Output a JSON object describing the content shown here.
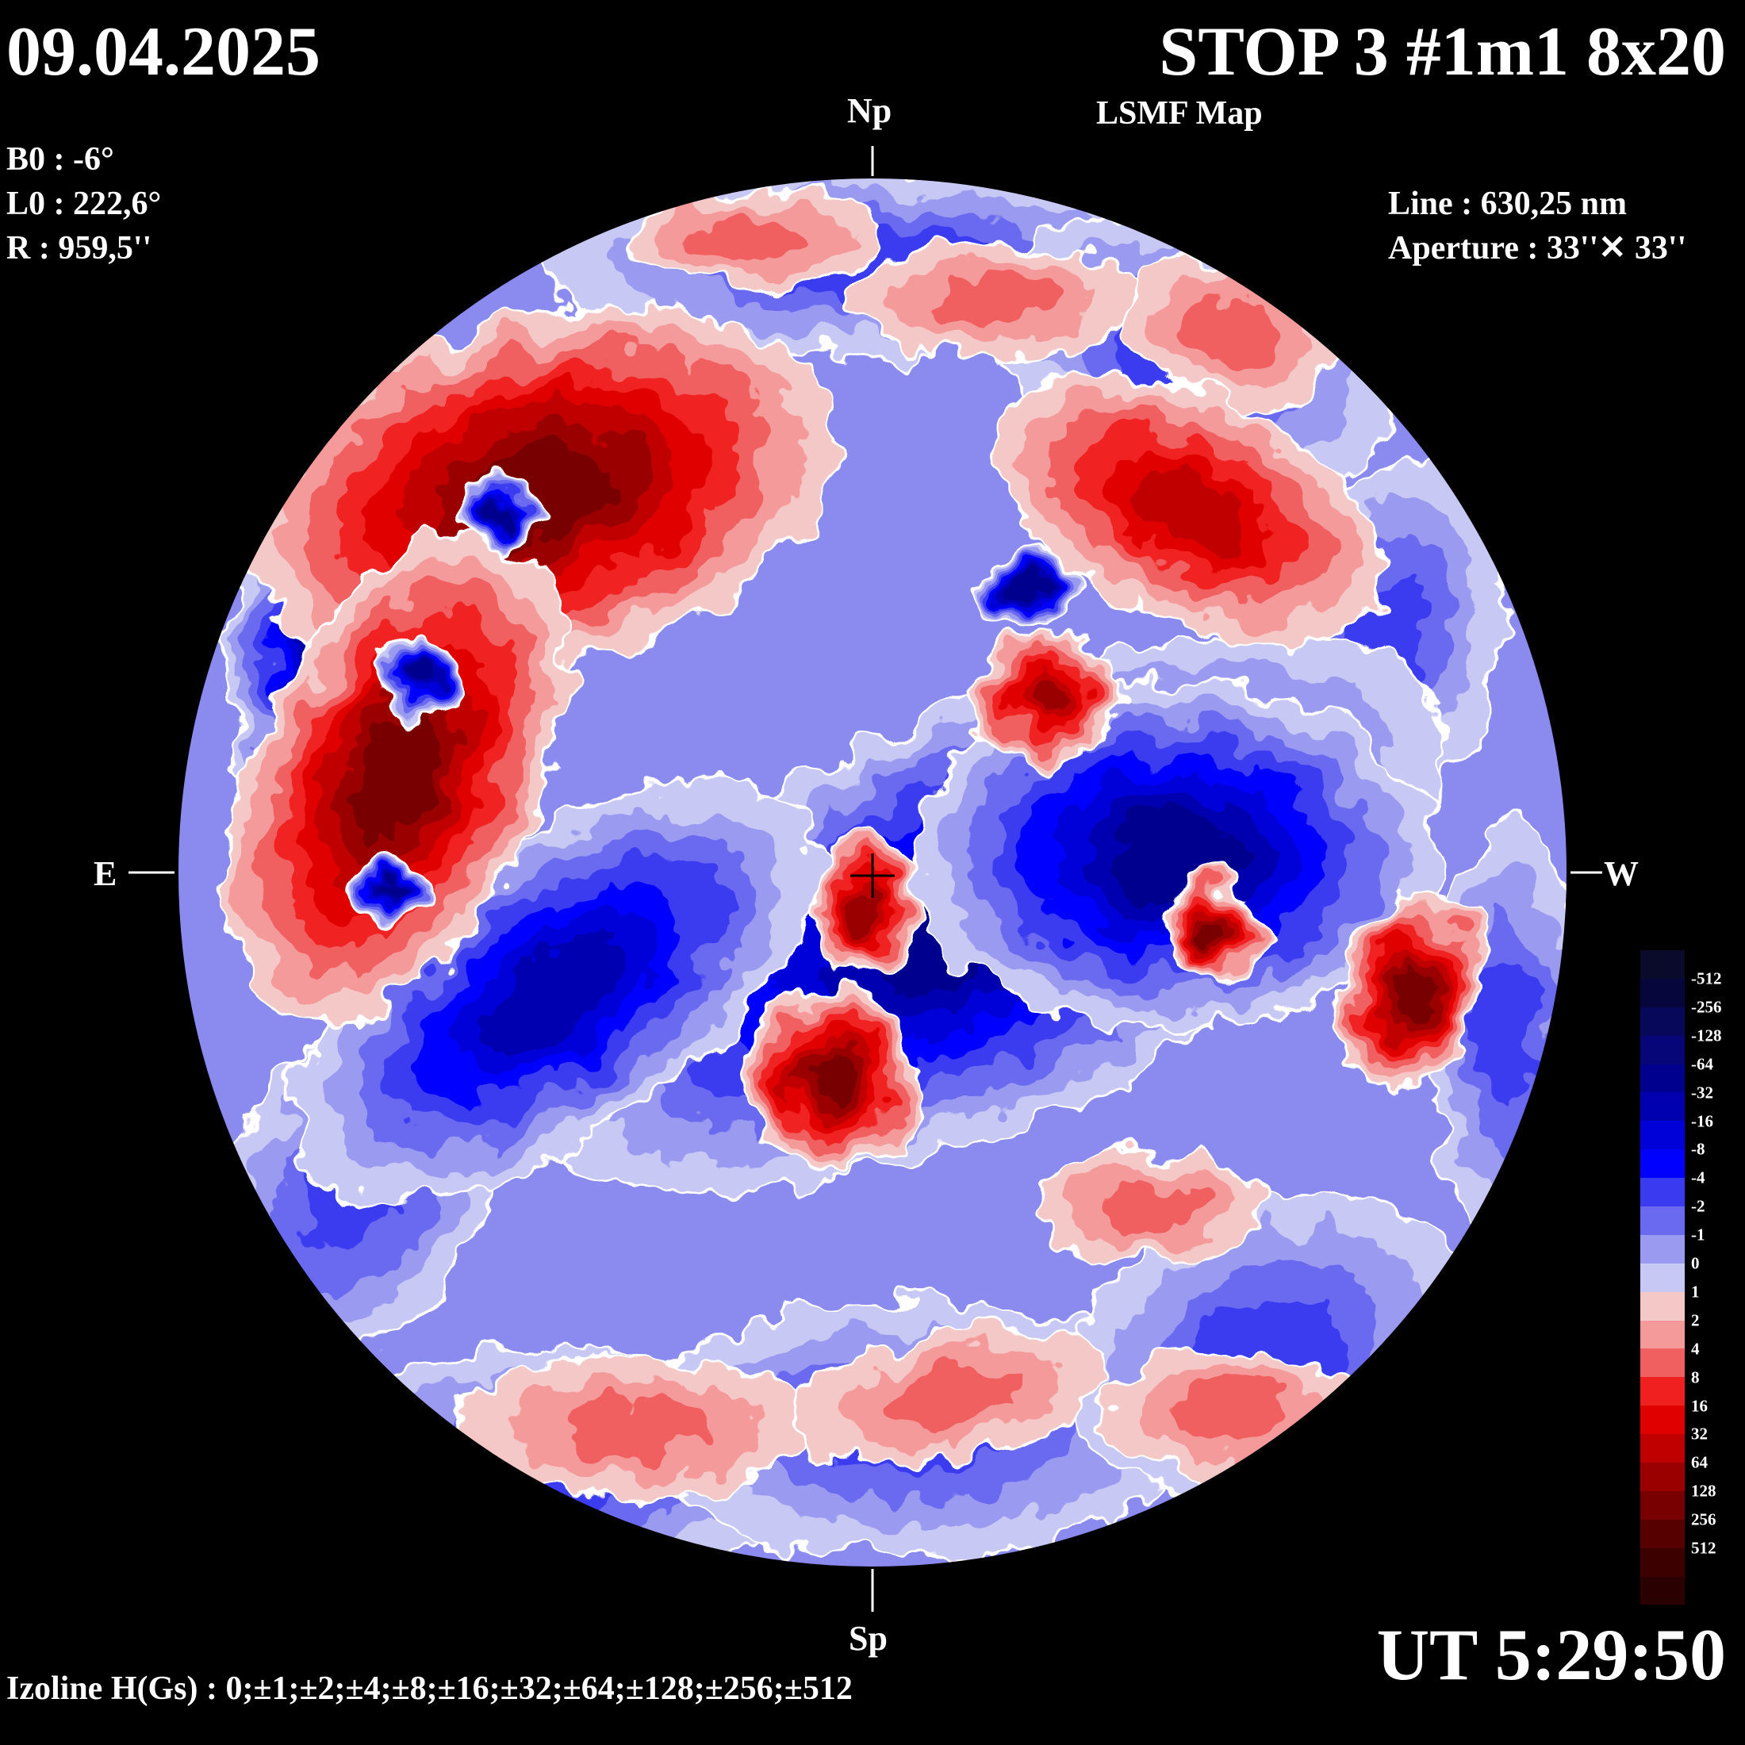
{
  "header": {
    "date": "09.04.2025",
    "title": "STOP 3 #1m1 8x20",
    "subtitle": "LSMF  Map"
  },
  "ephemeris": {
    "b0": "B0 : -6°",
    "l0": "L0 : 222,6°",
    "r": "R  : 959,5''"
  },
  "instrument": {
    "line": "Line :  630,25 nm",
    "aperture": "Aperture : 33''✕ 33''"
  },
  "directions": {
    "north": "Np",
    "south": "Sp",
    "east": "E",
    "west": "W"
  },
  "time": "UT 5:29:50",
  "izoline": "Izoline H(Gs) : 0;±1;±2;±4;±8;±16;±32;±64;±128;±256;±512",
  "colorbar": {
    "labels": [
      "-512",
      "-256",
      "-128",
      "-64",
      "-32",
      "-16",
      "-8",
      "-4",
      "-2",
      "-1",
      "0",
      "1",
      "2",
      "4",
      "8",
      "16",
      "32",
      "64",
      "128",
      "256",
      "512"
    ],
    "colors": [
      "#0a0a2a",
      "#06063c",
      "#08085a",
      "#060678",
      "#00008f",
      "#0000b0",
      "#0000d8",
      "#0000ff",
      "#3a3af0",
      "#6a6af0",
      "#9a9af0",
      "#c8c8f5",
      "#f5c8c8",
      "#f59a9a",
      "#f06060",
      "#f02020",
      "#e00000",
      "#c00000",
      "#9a0000",
      "#780000",
      "#560000",
      "#3c0000",
      "#2a0000"
    ]
  },
  "map_colors": {
    "negative": [
      "#c8c8f5",
      "#9a9af0",
      "#6a6af0",
      "#3a3af0",
      "#0000ff",
      "#0000d8",
      "#0000b0",
      "#00008f",
      "#060678"
    ],
    "positive": [
      "#f5c8c8",
      "#f59a9a",
      "#f06060",
      "#f02020",
      "#e00000",
      "#c00000",
      "#9a0000",
      "#780000",
      "#560000"
    ],
    "zero_line": "#ffffff"
  }
}
